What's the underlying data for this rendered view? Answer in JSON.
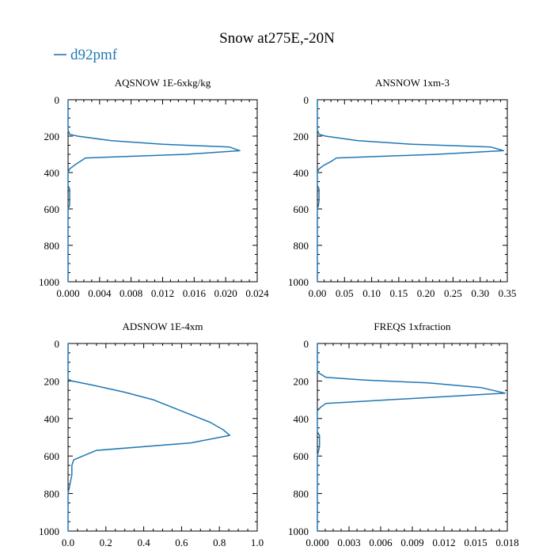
{
  "title": "Snow at275E,-20N",
  "legend": {
    "label": "d92pmf",
    "color": "#1f77b4"
  },
  "chart_data": [
    {
      "type": "line",
      "title": "AQSNOW  1E-6xkg/kg",
      "xlabel": "",
      "ylabel": "",
      "xlim": [
        0,
        0.024
      ],
      "ylim": [
        1000,
        0
      ],
      "xticks": [
        "0.000",
        "0.004",
        "0.008",
        "0.012",
        "0.016",
        "0.020",
        "0.024"
      ],
      "yticks": [
        "0",
        "200",
        "400",
        "600",
        "800",
        "1000"
      ],
      "series": [
        {
          "name": "d92pmf",
          "x": [
            0.0,
            0.0,
            0.0,
            0.0002,
            0.0012,
            0.0055,
            0.012,
            0.0205,
            0.0218,
            0.015,
            0.0022,
            0.0015,
            0.0008,
            0.0002,
            0.0,
            0.0,
            0.0002,
            0.0002,
            0.0002,
            0.0002,
            0.0,
            0.0,
            0.0
          ],
          "y": [
            0,
            150,
            165,
            190,
            200,
            225,
            245,
            260,
            280,
            300,
            320,
            340,
            360,
            380,
            400,
            470,
            490,
            520,
            550,
            580,
            600,
            800,
            1000
          ]
        }
      ]
    },
    {
      "type": "line",
      "title": "ANSNOW  1xm-3",
      "xlabel": "",
      "ylabel": "",
      "xlim": [
        0,
        0.35
      ],
      "ylim": [
        1000,
        0
      ],
      "xticks": [
        "0.00",
        "0.05",
        "0.10",
        "0.15",
        "0.20",
        "0.25",
        "0.30",
        "0.35"
      ],
      "yticks": [
        "0",
        "200",
        "400",
        "600",
        "800",
        "1000"
      ],
      "series": [
        {
          "name": "d92pmf",
          "x": [
            0.0,
            0.0,
            0.0,
            0.003,
            0.015,
            0.075,
            0.175,
            0.32,
            0.343,
            0.22,
            0.035,
            0.025,
            0.012,
            0.003,
            0.0,
            0.0,
            0.003,
            0.003,
            0.003,
            0.002,
            0.0,
            0.0,
            0.0
          ],
          "y": [
            0,
            150,
            165,
            190,
            200,
            225,
            245,
            260,
            280,
            300,
            320,
            340,
            360,
            380,
            400,
            470,
            490,
            520,
            550,
            580,
            600,
            800,
            1000
          ]
        }
      ]
    },
    {
      "type": "line",
      "title": "ADSNOW  1E-4xm",
      "xlabel": "",
      "ylabel": "",
      "xlim": [
        0,
        1.0
      ],
      "ylim": [
        1000,
        0
      ],
      "xticks": [
        "0.0",
        "0.2",
        "0.4",
        "0.6",
        "0.8",
        "1.0"
      ],
      "yticks": [
        "0",
        "200",
        "400",
        "600",
        "800",
        "1000"
      ],
      "series": [
        {
          "name": "d92pmf",
          "x": [
            0.0,
            0.0,
            0.02,
            0.12,
            0.3,
            0.45,
            0.6,
            0.75,
            0.82,
            0.855,
            0.65,
            0.15,
            0.03,
            0.02,
            0.02,
            0.01,
            0.0,
            0.0
          ],
          "y": [
            0,
            190,
            200,
            220,
            260,
            300,
            360,
            420,
            460,
            490,
            530,
            570,
            620,
            650,
            700,
            750,
            800,
            1000
          ]
        }
      ]
    },
    {
      "type": "line",
      "title": "FREQS  1xfraction",
      "xlabel": "",
      "ylabel": "",
      "xlim": [
        0,
        0.018
      ],
      "ylim": [
        1000,
        0
      ],
      "xticks": [
        "0.000",
        "0.003",
        "0.006",
        "0.009",
        "0.012",
        "0.015",
        "0.018"
      ],
      "yticks": [
        "0",
        "200",
        "400",
        "600",
        "800",
        "1000"
      ],
      "series": [
        {
          "name": "d92pmf",
          "x": [
            0.0,
            0.0,
            0.0002,
            0.0008,
            0.0045,
            0.0105,
            0.0155,
            0.0178,
            0.01,
            0.0008,
            0.0003,
            0.0,
            0.0,
            0.0002,
            0.0002,
            0.0002,
            0.0,
            0.0,
            0.0
          ],
          "y": [
            0,
            150,
            160,
            180,
            195,
            210,
            235,
            265,
            290,
            320,
            340,
            360,
            470,
            490,
            520,
            550,
            600,
            800,
            1000
          ]
        }
      ]
    }
  ]
}
